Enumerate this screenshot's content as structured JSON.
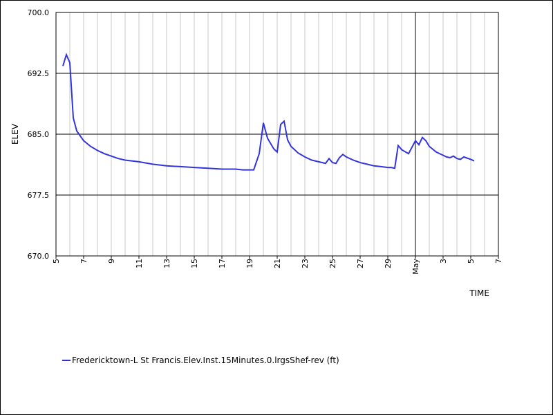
{
  "chart_data": {
    "type": "line",
    "xlabel": "TIME",
    "ylabel": "ELEV",
    "xlim": [
      5,
      7
    ],
    "ylim": [
      670.0,
      700.0
    ],
    "y_ticks": [
      "670.0",
      "677.5",
      "685.0",
      "692.5",
      "700.0"
    ],
    "x_ticks": [
      "5",
      "7",
      "9",
      "11",
      "13",
      "15",
      "17",
      "19",
      "21",
      "23",
      "25",
      "27",
      "29",
      "May",
      "3",
      "5",
      "7"
    ],
    "grid": true,
    "legend_position": "bottom-left",
    "series_color": "#3333dd",
    "series": [
      {
        "name": "Fredericktown-L St Francis.Elev.Inst.15Minutes.0.lrgsShef-rev (ft)",
        "x": [
          "Apr 5.5",
          "Apr 5.75",
          "Apr 6",
          "Apr 6.25",
          "Apr 6.5",
          "Apr 7",
          "Apr 7.5",
          "Apr 8",
          "Apr 8.5",
          "Apr 9",
          "Apr 9.5",
          "Apr 10",
          "Apr 11",
          "Apr 12",
          "Apr 13",
          "Apr 14",
          "Apr 15",
          "Apr 16",
          "Apr 17",
          "Apr 18",
          "Apr 18.5",
          "Apr 19",
          "Apr 19.3",
          "Apr 19.7",
          "Apr 20",
          "Apr 20.3",
          "Apr 20.75",
          "Apr 21",
          "Apr 21.25",
          "Apr 21.5",
          "Apr 21.75",
          "Apr 22",
          "Apr 22.5",
          "Apr 23",
          "Apr 23.5",
          "Apr 24",
          "Apr 24.5",
          "Apr 24.75",
          "Apr 25",
          "Apr 25.25",
          "Apr 25.5",
          "Apr 25.75",
          "Apr 26",
          "Apr 26.5",
          "Apr 27",
          "Apr 27.5",
          "Apr 28",
          "Apr 28.5",
          "Apr 29",
          "Apr 29.25",
          "Apr 29.5",
          "Apr 29.75",
          "Apr 30",
          "Apr 30.5",
          "Apr 30.75",
          "May 1",
          "May 1.25",
          "May 1.5",
          "May 1.75",
          "May 2",
          "May 2.5",
          "May 3",
          "May 3.25",
          "May 3.5",
          "May 3.75",
          "May 4",
          "May 4.25",
          "May 4.5",
          "May 5",
          "May 5.25"
        ],
        "y": [
          693.4,
          694.8,
          693.8,
          687.0,
          685.4,
          684.2,
          683.5,
          683.0,
          682.6,
          682.3,
          682.0,
          681.8,
          681.6,
          681.3,
          681.1,
          681.0,
          680.9,
          680.8,
          680.7,
          680.7,
          680.6,
          680.6,
          680.6,
          682.6,
          686.4,
          684.5,
          683.2,
          682.8,
          686.2,
          686.6,
          684.3,
          683.5,
          682.7,
          682.2,
          681.8,
          681.6,
          681.4,
          682.0,
          681.5,
          681.4,
          682.1,
          682.5,
          682.2,
          681.8,
          681.5,
          681.3,
          681.1,
          681.0,
          680.9,
          680.9,
          680.8,
          683.6,
          683.1,
          682.6,
          683.4,
          684.2,
          683.7,
          684.6,
          684.2,
          683.5,
          682.8,
          682.4,
          682.2,
          682.1,
          682.3,
          682.0,
          681.9,
          682.2,
          681.9,
          681.7
        ]
      }
    ]
  }
}
